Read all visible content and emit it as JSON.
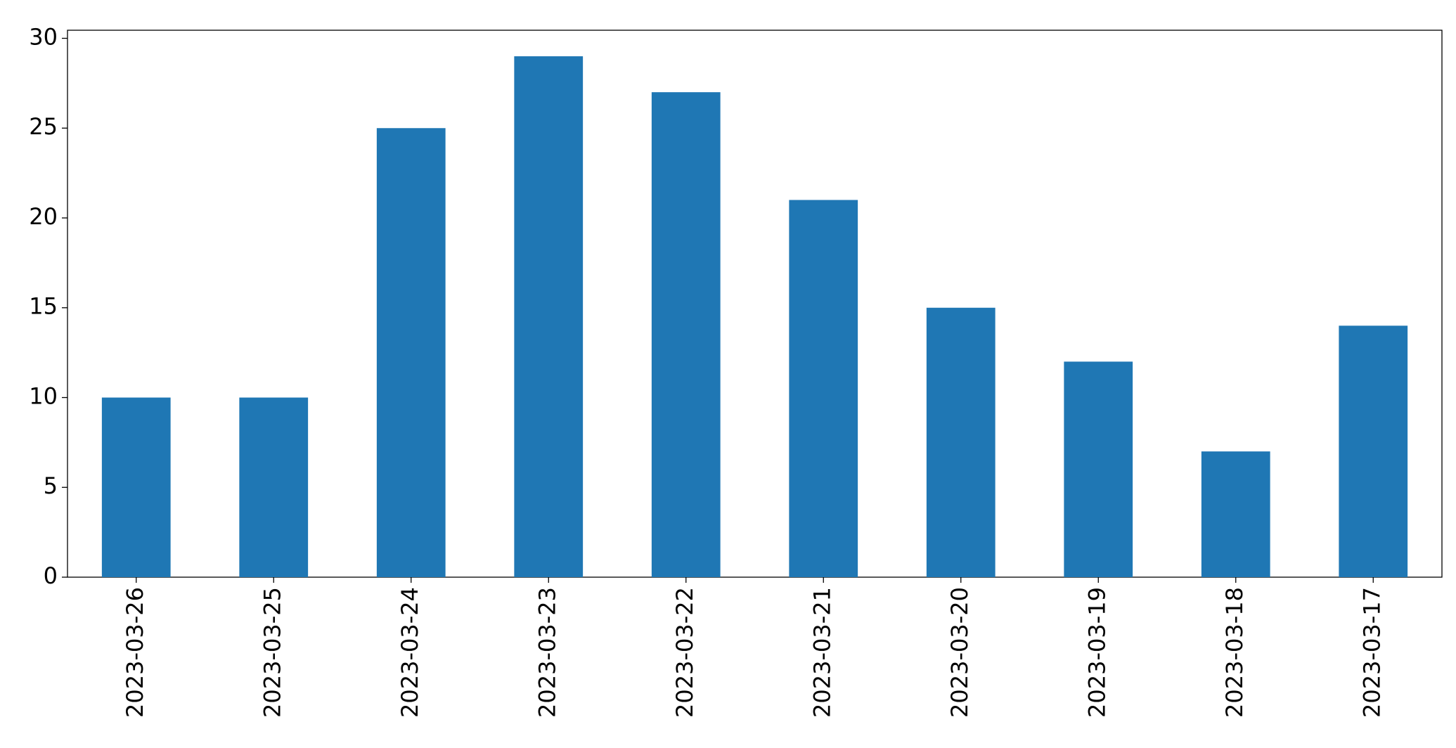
{
  "chart_data": {
    "type": "bar",
    "categories": [
      "2023-03-26",
      "2023-03-25",
      "2023-03-24",
      "2023-03-23",
      "2023-03-22",
      "2023-03-21",
      "2023-03-20",
      "2023-03-19",
      "2023-03-18",
      "2023-03-17"
    ],
    "values": [
      10,
      10,
      25,
      29,
      27,
      21,
      15,
      12,
      7,
      14
    ],
    "color": "#1f77b4",
    "ylim": [
      0,
      30.45
    ],
    "yticks": [
      0,
      5,
      10,
      15,
      20,
      25,
      30
    ]
  }
}
